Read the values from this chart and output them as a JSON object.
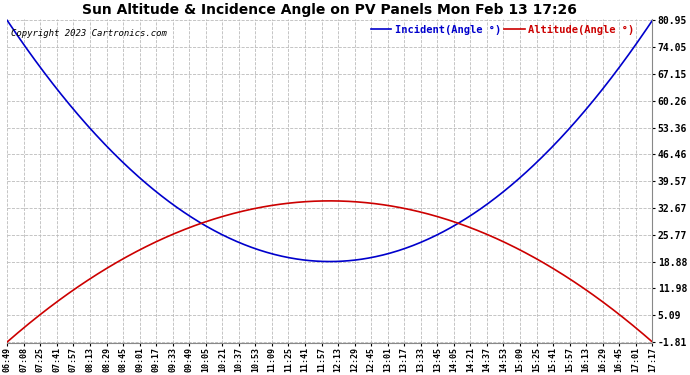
{
  "title": "Sun Altitude & Incidence Angle on PV Panels Mon Feb 13 17:26",
  "copyright": "Copyright 2023 Cartronics.com",
  "legend_incident": "Incident(Angle °)",
  "legend_altitude": "Altitude(Angle °)",
  "incident_color": "#0000cc",
  "altitude_color": "#cc0000",
  "background_color": "#ffffff",
  "plot_bg_color": "#ffffff",
  "grid_color": "#bbbbbb",
  "yticks": [
    80.95,
    74.05,
    67.15,
    60.26,
    53.36,
    46.46,
    39.57,
    32.67,
    25.77,
    18.88,
    11.98,
    5.09,
    -1.81
  ],
  "ymin": -1.81,
  "ymax": 80.95,
  "incident_min": 18.88,
  "incident_max": 80.95,
  "altitude_max": 34.5,
  "altitude_min": -1.81,
  "x_labels": [
    "06:49",
    "07:08",
    "07:25",
    "07:41",
    "07:57",
    "08:13",
    "08:29",
    "08:45",
    "09:01",
    "09:17",
    "09:33",
    "09:49",
    "10:05",
    "10:21",
    "10:37",
    "10:53",
    "11:09",
    "11:25",
    "11:41",
    "11:57",
    "12:13",
    "12:29",
    "12:45",
    "13:01",
    "13:17",
    "13:33",
    "13:45",
    "14:05",
    "14:21",
    "14:37",
    "14:53",
    "15:09",
    "15:25",
    "15:41",
    "15:57",
    "16:13",
    "16:29",
    "16:45",
    "17:01",
    "17:17"
  ]
}
